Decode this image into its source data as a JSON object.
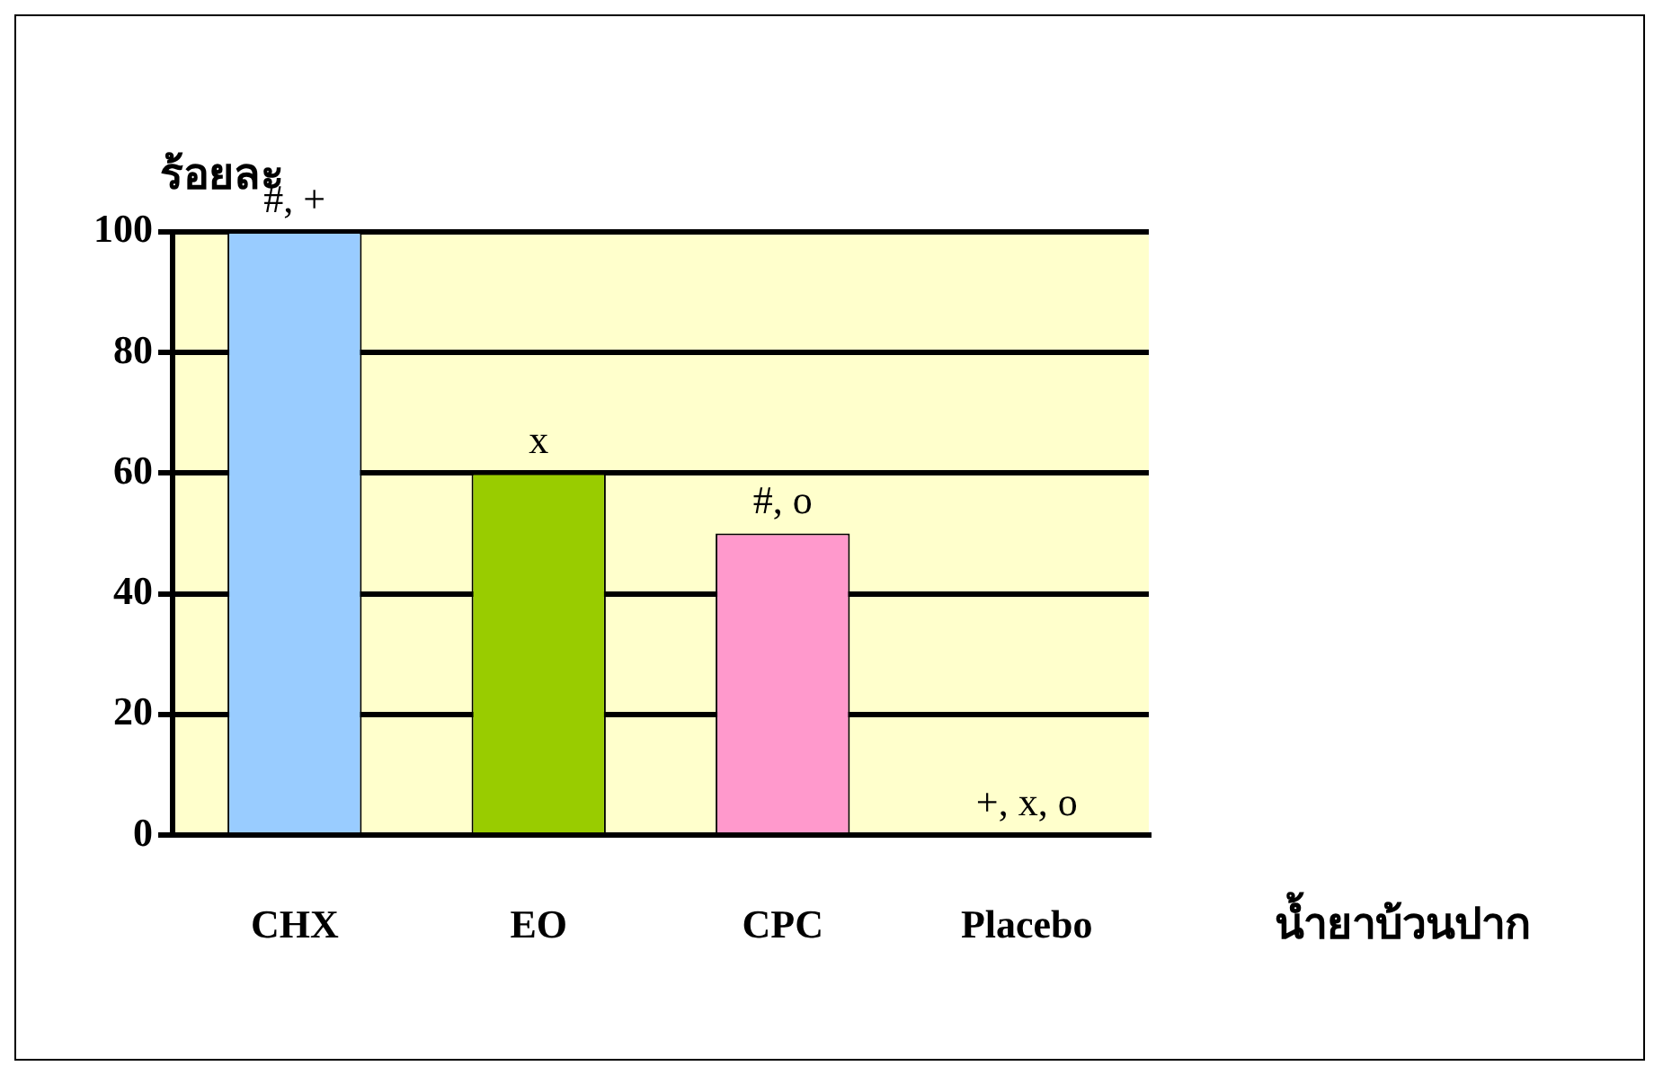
{
  "chart_data": {
    "type": "bar",
    "ylabel": "ร้อยละ",
    "xlabel": "น้ำยาบ้วนปาก",
    "categories": [
      "CHX",
      "EO",
      "CPC",
      "Placebo"
    ],
    "values": [
      100,
      60,
      50,
      0
    ],
    "colors": [
      "#99ccff",
      "#99cc00",
      "#ff99cc",
      "#cccc00"
    ],
    "ylim": [
      0,
      100
    ],
    "yticks": [
      0,
      20,
      40,
      60,
      80,
      100
    ],
    "grid": "y",
    "legend": false,
    "annotations": [
      {
        "text": "#, +",
        "x": "CHX",
        "y": 100
      },
      {
        "text": "x",
        "x": "EO",
        "y": 60
      },
      {
        "text": "#, o",
        "x": "CPC",
        "y": 50
      },
      {
        "text": "+, x, o",
        "x": "Placebo",
        "y": 0
      }
    ]
  }
}
